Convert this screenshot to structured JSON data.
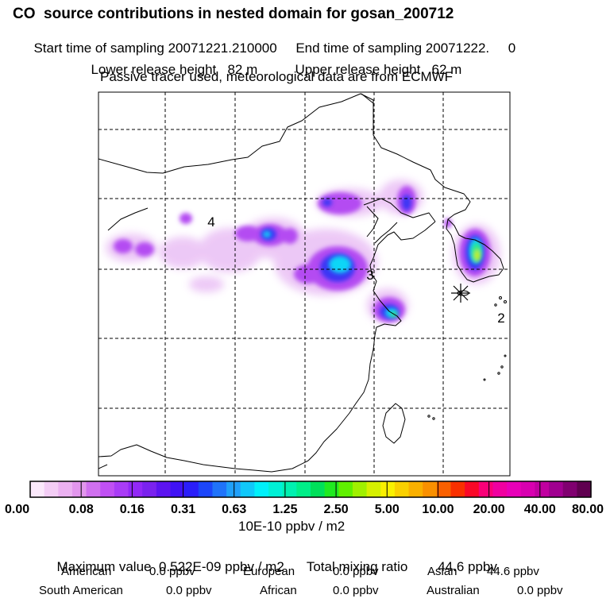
{
  "header": {
    "title": "CO  source contributions in nested domain for gosan_200712",
    "start_label": "Start time of sampling",
    "start_value": "20071221.210000",
    "end_label": "End time of sampling",
    "end_value": "20071222.     0",
    "lower_label": "Lower release height",
    "lower_value": "82 m",
    "upper_label": "Upper release height",
    "upper_value": "62 m",
    "tracer_note": "Passive tracer used, meteorological data are from ECMWF"
  },
  "chart_data": {
    "type": "heatmap",
    "title": "CO  source contributions in nested domain for gosan_200712",
    "map": "East Asia nested domain, dashed lat/lon grid",
    "region_labels": [
      "4",
      "3",
      "2"
    ],
    "receptor_marker": "Gosan",
    "colorbar": {
      "tick_labels": [
        "0.00",
        "0.08",
        "0.16",
        "0.31",
        "0.63",
        "1.25",
        "2.50",
        "5.00",
        "10.00",
        "20.00",
        "40.00",
        "80.00"
      ],
      "unit": "10E-10 ppbv / m2",
      "colors": [
        "#fbe9fb",
        "#f3cdf5",
        "#ebb1f1",
        "#e296ed",
        "#d070ef",
        "#c050f3",
        "#a93cf6",
        "#9228f7",
        "#7a22ee",
        "#5c14f0",
        "#4012f4",
        "#2a1efa",
        "#1c46fa",
        "#2073fa",
        "#20a0fa",
        "#10c8fa",
        "#00f0fa",
        "#00f0d6",
        "#00f0b0",
        "#00ee88",
        "#00e05a",
        "#20ea20",
        "#60f000",
        "#a0f000",
        "#d6f000",
        "#faf000",
        "#fad000",
        "#fab000",
        "#fa9000",
        "#fa6000",
        "#fa3000",
        "#fa0828",
        "#fa0078",
        "#f000a0",
        "#e800b8",
        "#d800b0",
        "#c000a0",
        "#a00090",
        "#800070",
        "#600050"
      ]
    }
  },
  "summary": {
    "max_label": "Maximum value",
    "max_value": "0.522E-09 ppbv / m2",
    "total_label": "Total mixing ratio",
    "total_value": "44.6 ppbv"
  },
  "regions": [
    {
      "name": "American",
      "value": "0.0 ppbv"
    },
    {
      "name": "European",
      "value": "0.0 ppbv"
    },
    {
      "name": "Asian",
      "value": "44.6 ppbv"
    },
    {
      "name": "South American",
      "value": "0.0 ppbv"
    },
    {
      "name": "African",
      "value": "0.0 ppbv"
    },
    {
      "name": "Australian",
      "value": "0.0 ppbv"
    }
  ]
}
